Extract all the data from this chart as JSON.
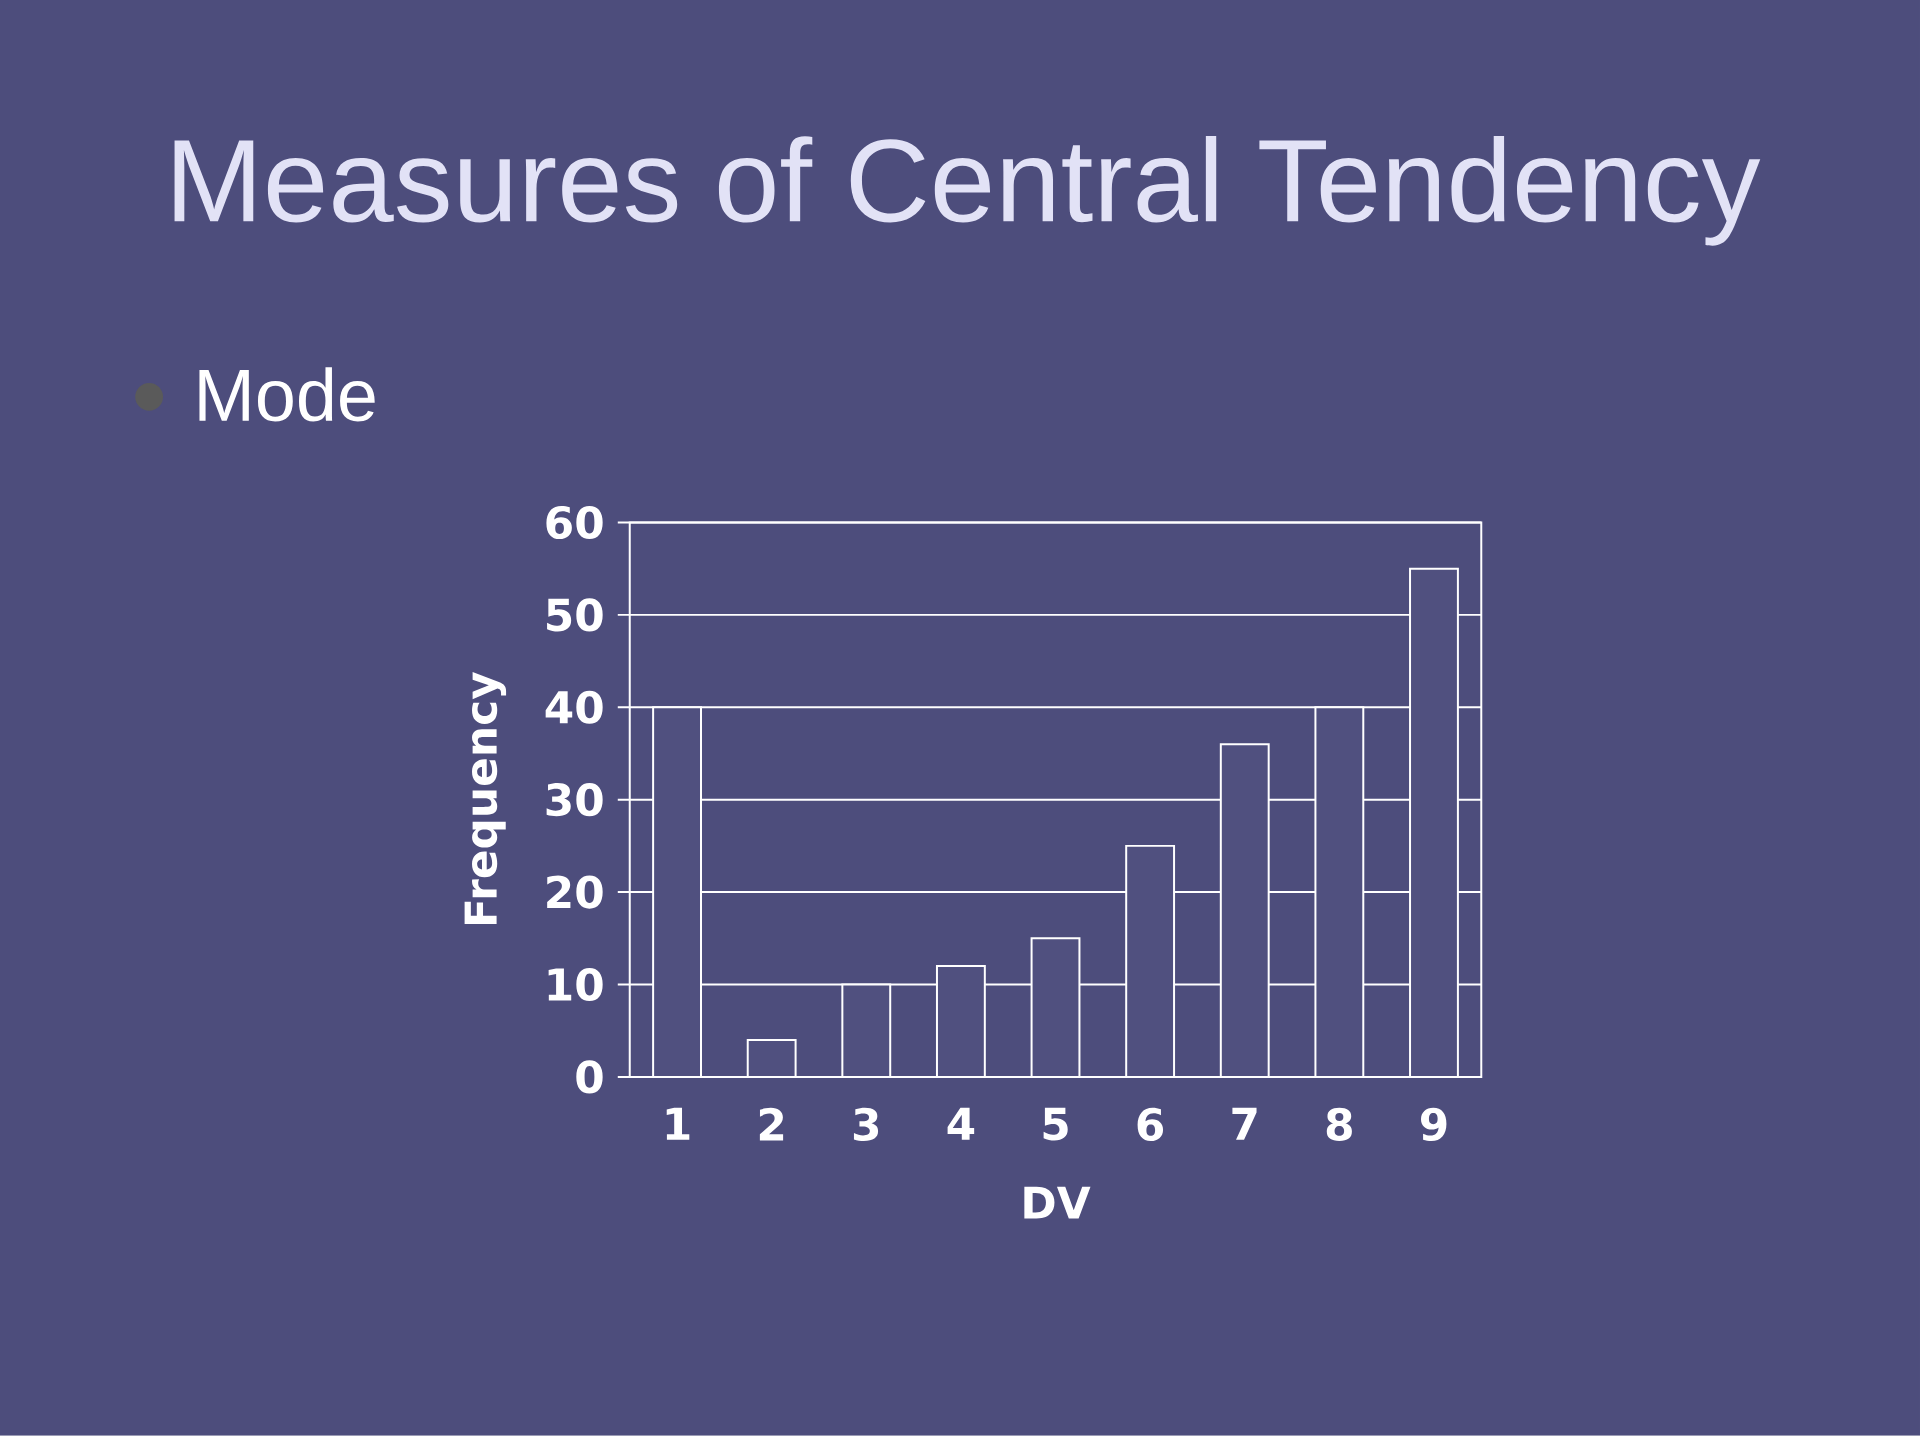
{
  "chart_data": {
    "type": "bar",
    "title": "Measures of Central Tendency",
    "subtitle": "Mode",
    "xlabel": "DV",
    "ylabel": "Frequency",
    "categories": [
      "1",
      "2",
      "3",
      "4",
      "5",
      "6",
      "7",
      "8",
      "9"
    ],
    "values": [
      40,
      4,
      10,
      12,
      15,
      25,
      36,
      40,
      55
    ],
    "color": "#50507f",
    "ylim": [
      0,
      60
    ],
    "yticks": [
      0,
      10,
      20,
      30,
      40,
      50,
      60
    ],
    "grid": "y"
  }
}
